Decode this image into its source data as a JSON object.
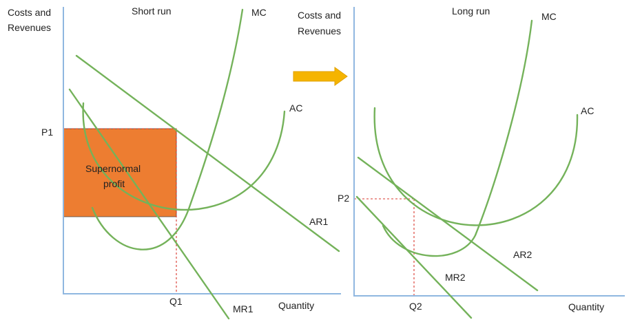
{
  "colors": {
    "axis": "#8fb7e0",
    "curve": "#74b25a",
    "profit_fill": "#ed7d31",
    "profit_border": "#4a4a4a",
    "guide": "#d9342b",
    "arrow": "#f5b400"
  },
  "short_run": {
    "title": "Short run",
    "y_axis_label_line1": "Costs and",
    "y_axis_label_line2": "Revenues",
    "x_axis_label": "Quantity",
    "price_label": "P1",
    "quantity_label": "Q1",
    "mc_label": "MC",
    "ac_label": "AC",
    "ar_label": "AR1",
    "mr_label": "MR1",
    "area_label_line1": "Supernormal",
    "area_label_line2": "profit"
  },
  "transition_arrow": {
    "icon": "right-arrow-icon"
  },
  "long_run": {
    "title": "Long run",
    "y_axis_label_line1": "Costs and",
    "y_axis_label_line2": "Revenues",
    "x_axis_label": "Quantity",
    "price_label": "P2",
    "quantity_label": "Q2",
    "mc_label": "MC",
    "ac_label": "AC",
    "ar_label": "AR2",
    "mr_label": "MR2"
  }
}
